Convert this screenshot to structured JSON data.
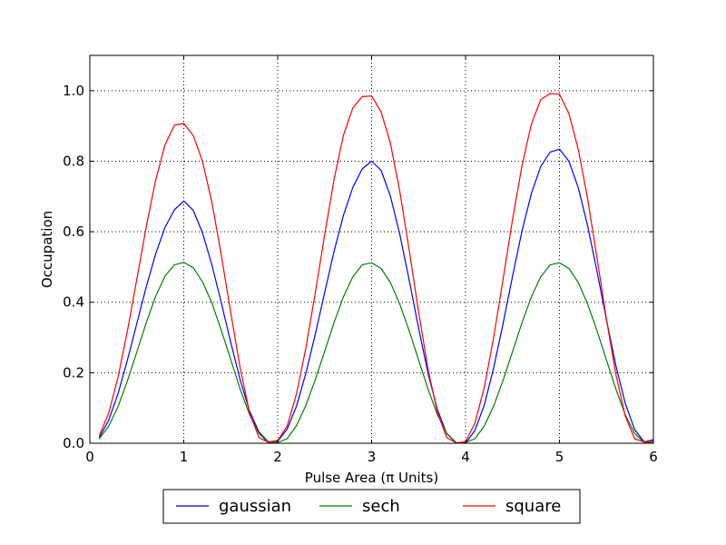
{
  "chart_data": {
    "type": "line",
    "xlabel": "Pulse Area (π Units)",
    "ylabel": "Occupation",
    "xlim": [
      0,
      6
    ],
    "ylim": [
      0,
      1.1
    ],
    "xticks": [
      "0",
      "1",
      "2",
      "3",
      "4",
      "5",
      "6"
    ],
    "yticks": [
      "0.0",
      "0.2",
      "0.4",
      "0.6",
      "0.8",
      "1.0"
    ],
    "grid": true,
    "legend_position": "below",
    "x": [
      0.1,
      0.2,
      0.3,
      0.4,
      0.5,
      0.6,
      0.7,
      0.8,
      0.9,
      1.0,
      1.1,
      1.2,
      1.3,
      1.4,
      1.5,
      1.6,
      1.7,
      1.8,
      1.9,
      2.0,
      2.1,
      2.2,
      2.3,
      2.4,
      2.5,
      2.6,
      2.7,
      2.8,
      2.9,
      3.0,
      3.1,
      3.2,
      3.3,
      3.4,
      3.5,
      3.6,
      3.7,
      3.8,
      3.9,
      4.0,
      4.1,
      4.2,
      4.3,
      4.4,
      4.5,
      4.6,
      4.7,
      4.8,
      4.9,
      5.0,
      5.1,
      5.2,
      5.3,
      5.4,
      5.5,
      5.6,
      5.7,
      5.8,
      5.9,
      6.0
    ],
    "series": [
      {
        "name": "gaussian",
        "color": "#0000ff",
        "values": [
          0.016,
          0.065,
          0.141,
          0.236,
          0.34,
          0.443,
          0.536,
          0.612,
          0.662,
          0.687,
          0.661,
          0.596,
          0.505,
          0.398,
          0.286,
          0.18,
          0.092,
          0.032,
          0.004,
          0.006,
          0.04,
          0.105,
          0.198,
          0.309,
          0.428,
          0.544,
          0.646,
          0.726,
          0.778,
          0.8,
          0.774,
          0.701,
          0.593,
          0.463,
          0.326,
          0.199,
          0.095,
          0.027,
          0.001,
          0.0,
          0.036,
          0.109,
          0.214,
          0.34,
          0.474,
          0.601,
          0.708,
          0.785,
          0.826,
          0.834,
          0.8,
          0.725,
          0.617,
          0.487,
          0.35,
          0.221,
          0.113,
          0.039,
          0.004,
          0.01
        ]
      },
      {
        "name": "sech",
        "color": "#008000",
        "values": [
          0.012,
          0.048,
          0.104,
          0.177,
          0.259,
          0.341,
          0.416,
          0.474,
          0.506,
          0.513,
          0.498,
          0.458,
          0.397,
          0.32,
          0.237,
          0.154,
          0.082,
          0.028,
          0.002,
          0.002,
          0.013,
          0.05,
          0.107,
          0.18,
          0.261,
          0.342,
          0.415,
          0.472,
          0.506,
          0.512,
          0.496,
          0.456,
          0.395,
          0.319,
          0.236,
          0.154,
          0.081,
          0.028,
          0.002,
          0.002,
          0.013,
          0.049,
          0.106,
          0.179,
          0.26,
          0.341,
          0.415,
          0.472,
          0.506,
          0.512,
          0.496,
          0.456,
          0.395,
          0.319,
          0.236,
          0.154,
          0.081,
          0.028,
          0.002,
          0.002
        ]
      },
      {
        "name": "square",
        "color": "#ff0000",
        "values": [
          0.021,
          0.085,
          0.188,
          0.319,
          0.466,
          0.613,
          0.745,
          0.846,
          0.902,
          0.907,
          0.873,
          0.799,
          0.682,
          0.533,
          0.37,
          0.214,
          0.088,
          0.016,
          0.003,
          0.008,
          0.049,
          0.14,
          0.27,
          0.426,
          0.592,
          0.748,
          0.873,
          0.951,
          0.983,
          0.985,
          0.94,
          0.851,
          0.715,
          0.548,
          0.372,
          0.211,
          0.087,
          0.016,
          0.001,
          0.004,
          0.057,
          0.159,
          0.301,
          0.466,
          0.635,
          0.786,
          0.905,
          0.974,
          0.992,
          0.99,
          0.935,
          0.834,
          0.694,
          0.525,
          0.351,
          0.196,
          0.077,
          0.013,
          0.004,
          0.006
        ]
      }
    ]
  }
}
